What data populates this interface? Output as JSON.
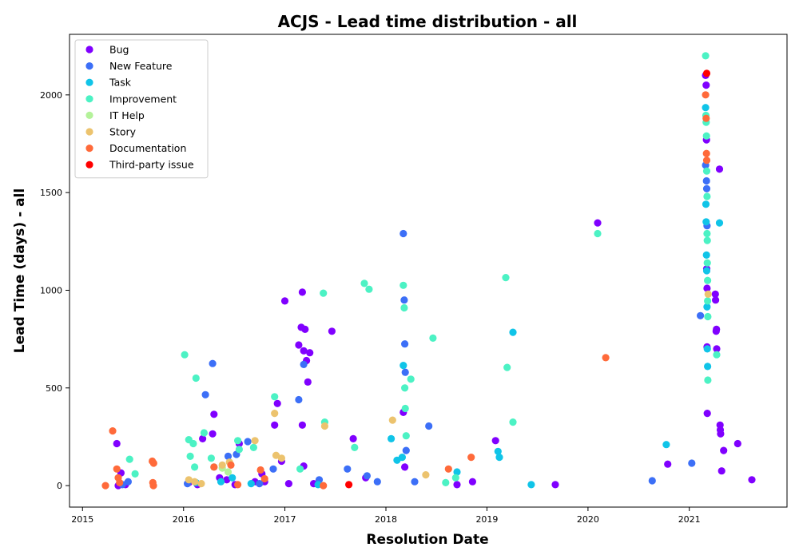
{
  "chart_data": {
    "type": "scatter",
    "title": "ACJS - Lead time distribution - all",
    "xlabel": "Resolution Date",
    "ylabel": "Lead Time (days) - all",
    "x_type": "date",
    "xlim": [
      "2014-11-15",
      "2021-12-20"
    ],
    "ylim": [
      -110,
      2310
    ],
    "x_ticks": [
      "2015",
      "2016",
      "2017",
      "2018",
      "2019",
      "2020",
      "2021"
    ],
    "y_ticks": [
      0,
      500,
      1000,
      1500,
      2000
    ],
    "grid": false,
    "legend_position": "top-left",
    "series": [
      {
        "name": "Bug",
        "color": "#8000ff",
        "points": [
          [
            "2015-05-05",
            215
          ],
          [
            "2015-05-20",
            65
          ],
          [
            "2015-06-05",
            5
          ],
          [
            "2015-05-10",
            0
          ],
          [
            "2016-01-20",
            15
          ],
          [
            "2016-02-20",
            5
          ],
          [
            "2016-03-10",
            240
          ],
          [
            "2016-04-15",
            265
          ],
          [
            "2016-04-20",
            365
          ],
          [
            "2016-05-10",
            40
          ],
          [
            "2016-06-05",
            30
          ],
          [
            "2016-07-05",
            5
          ],
          [
            "2016-07-20",
            215
          ],
          [
            "2016-09-15",
            20
          ],
          [
            "2016-10-10",
            60
          ],
          [
            "2016-10-20",
            20
          ],
          [
            "2016-11-25",
            310
          ],
          [
            "2016-12-05",
            420
          ],
          [
            "2016-12-20",
            125
          ],
          [
            "2017-01-01",
            945
          ],
          [
            "2017-01-15",
            10
          ],
          [
            "2017-02-20",
            720
          ],
          [
            "2017-03-01",
            810
          ],
          [
            "2017-03-05",
            990
          ],
          [
            "2017-03-10",
            690
          ],
          [
            "2017-03-15",
            800
          ],
          [
            "2017-03-20",
            640
          ],
          [
            "2017-03-25",
            530
          ],
          [
            "2017-03-05",
            310
          ],
          [
            "2017-04-01",
            680
          ],
          [
            "2017-03-10",
            100
          ],
          [
            "2017-04-15",
            10
          ],
          [
            "2017-06-20",
            790
          ],
          [
            "2017-09-05",
            240
          ],
          [
            "2017-10-20",
            40
          ],
          [
            "2018-03-05",
            375
          ],
          [
            "2018-03-10",
            95
          ],
          [
            "2018-09-15",
            5
          ],
          [
            "2018-11-10",
            20
          ],
          [
            "2019-02-01",
            230
          ],
          [
            "2019-09-05",
            5
          ],
          [
            "2020-02-05",
            1345
          ],
          [
            "2020-10-15",
            110
          ],
          [
            "2021-03-01",
            2100
          ],
          [
            "2021-03-03",
            2050
          ],
          [
            "2021-03-04",
            1770
          ],
          [
            "2021-03-05",
            1110
          ],
          [
            "2021-03-06",
            1010
          ],
          [
            "2021-03-06",
            710
          ],
          [
            "2021-03-07",
            370
          ],
          [
            "2021-04-05",
            980
          ],
          [
            "2021-04-06",
            950
          ],
          [
            "2021-04-08",
            790
          ],
          [
            "2021-04-09",
            800
          ],
          [
            "2021-04-10",
            700
          ],
          [
            "2021-04-20",
            1620
          ],
          [
            "2021-04-22",
            310
          ],
          [
            "2021-04-23",
            285
          ],
          [
            "2021-04-24",
            265
          ],
          [
            "2021-05-05",
            180
          ],
          [
            "2021-04-28",
            75
          ],
          [
            "2021-06-25",
            215
          ],
          [
            "2021-08-15",
            30
          ]
        ]
      },
      {
        "name": "New Feature",
        "color": "#3c6ff7",
        "points": [
          [
            "2015-06-15",
            20
          ],
          [
            "2015-05-25",
            5
          ],
          [
            "2016-01-15",
            10
          ],
          [
            "2016-03-20",
            465
          ],
          [
            "2016-04-15",
            625
          ],
          [
            "2016-06-10",
            150
          ],
          [
            "2016-07-10",
            160
          ],
          [
            "2016-08-20",
            225
          ],
          [
            "2016-10-01",
            10
          ],
          [
            "2016-11-20",
            85
          ],
          [
            "2017-02-20",
            440
          ],
          [
            "2017-03-10",
            620
          ],
          [
            "2017-05-05",
            30
          ],
          [
            "2017-08-15",
            85
          ],
          [
            "2017-10-25",
            50
          ],
          [
            "2017-12-01",
            20
          ],
          [
            "2018-03-05",
            1290
          ],
          [
            "2018-03-08",
            950
          ],
          [
            "2018-03-10",
            725
          ],
          [
            "2018-03-12",
            580
          ],
          [
            "2018-03-15",
            180
          ],
          [
            "2018-06-05",
            305
          ],
          [
            "2018-04-15",
            20
          ],
          [
            "2020-08-20",
            25
          ],
          [
            "2021-01-10",
            115
          ],
          [
            "2021-02-10",
            870
          ],
          [
            "2021-03-01",
            1640
          ],
          [
            "2021-03-04",
            1560
          ],
          [
            "2021-03-05",
            1520
          ],
          [
            "2021-03-06",
            1330
          ]
        ]
      },
      {
        "name": "Task",
        "color": "#10c4e8",
        "points": [
          [
            "2016-02-15",
            15
          ],
          [
            "2016-05-15",
            20
          ],
          [
            "2016-06-25",
            40
          ],
          [
            "2016-09-01",
            10
          ],
          [
            "2017-05-01",
            5
          ],
          [
            "2018-01-20",
            240
          ],
          [
            "2018-02-10",
            130
          ],
          [
            "2018-03-01",
            145
          ],
          [
            "2018-03-05",
            615
          ],
          [
            "2018-09-15",
            70
          ],
          [
            "2019-02-10",
            175
          ],
          [
            "2019-02-15",
            145
          ],
          [
            "2019-04-05",
            785
          ],
          [
            "2019-06-10",
            5
          ],
          [
            "2020-10-10",
            210
          ],
          [
            "2021-03-01",
            1935
          ],
          [
            "2021-03-02",
            1440
          ],
          [
            "2021-03-03",
            1350
          ],
          [
            "2021-03-04",
            1180
          ],
          [
            "2021-03-05",
            1100
          ],
          [
            "2021-03-06",
            915
          ],
          [
            "2021-03-07",
            700
          ],
          [
            "2021-03-08",
            610
          ],
          [
            "2021-04-20",
            1345
          ]
        ]
      },
      {
        "name": "Improvement",
        "color": "#4cf2c4",
        "points": [
          [
            "2015-07-10",
            60
          ],
          [
            "2015-06-20",
            135
          ],
          [
            "2016-01-05",
            670
          ],
          [
            "2016-02-15",
            550
          ],
          [
            "2016-01-20",
            235
          ],
          [
            "2016-02-05",
            215
          ],
          [
            "2016-03-15",
            270
          ],
          [
            "2016-01-25",
            150
          ],
          [
            "2016-04-10",
            140
          ],
          [
            "2016-04-20",
            95
          ],
          [
            "2016-02-10",
            95
          ],
          [
            "2016-07-15",
            230
          ],
          [
            "2016-07-20",
            185
          ],
          [
            "2016-09-10",
            195
          ],
          [
            "2016-11-25",
            455
          ],
          [
            "2017-02-25",
            85
          ],
          [
            "2017-05-20",
            985
          ],
          [
            "2017-05-25",
            325
          ],
          [
            "2017-09-10",
            195
          ],
          [
            "2017-10-15",
            1035
          ],
          [
            "2017-11-01",
            1005
          ],
          [
            "2018-03-05",
            1025
          ],
          [
            "2018-03-08",
            910
          ],
          [
            "2018-03-10",
            500
          ],
          [
            "2018-03-12",
            395
          ],
          [
            "2018-03-15",
            255
          ],
          [
            "2018-04-01",
            545
          ],
          [
            "2018-06-20",
            755
          ],
          [
            "2018-08-05",
            15
          ],
          [
            "2018-09-10",
            40
          ],
          [
            "2019-03-10",
            1065
          ],
          [
            "2019-03-15",
            605
          ],
          [
            "2019-04-05",
            325
          ],
          [
            "2020-02-05",
            1290
          ],
          [
            "2021-03-01",
            2200
          ],
          [
            "2021-03-02",
            1895
          ],
          [
            "2021-03-03",
            1860
          ],
          [
            "2021-03-04",
            1790
          ],
          [
            "2021-03-05",
            1610
          ],
          [
            "2021-03-06",
            1480
          ],
          [
            "2021-03-06",
            1290
          ],
          [
            "2021-03-07",
            1255
          ],
          [
            "2021-03-07",
            1140
          ],
          [
            "2021-03-08",
            1050
          ],
          [
            "2021-03-08",
            945
          ],
          [
            "2021-03-09",
            865
          ],
          [
            "2021-03-09",
            540
          ],
          [
            "2021-04-10",
            670
          ]
        ]
      },
      {
        "name": "IT Help",
        "color": "#b4f29a",
        "points": [
          [
            "2016-05-20",
            90
          ],
          [
            "2016-06-10",
            70
          ]
        ]
      },
      {
        "name": "Story",
        "color": "#ecc36e",
        "points": [
          [
            "2016-01-20",
            30
          ],
          [
            "2016-02-10",
            20
          ],
          [
            "2016-03-05",
            10
          ],
          [
            "2016-05-20",
            105
          ],
          [
            "2016-06-15",
            120
          ],
          [
            "2016-09-15",
            230
          ],
          [
            "2016-11-25",
            370
          ],
          [
            "2016-11-30",
            155
          ],
          [
            "2016-12-20",
            140
          ],
          [
            "2017-05-25",
            305
          ],
          [
            "2018-01-25",
            335
          ],
          [
            "2018-05-25",
            55
          ],
          [
            "2021-03-10",
            980
          ]
        ]
      },
      {
        "name": "Documentation",
        "color": "#ff6a3a",
        "points": [
          [
            "2015-03-25",
            0
          ],
          [
            "2015-04-20",
            280
          ],
          [
            "2015-05-05",
            85
          ],
          [
            "2015-05-10",
            40
          ],
          [
            "2015-05-15",
            15
          ],
          [
            "2015-09-10",
            125
          ],
          [
            "2015-09-15",
            115
          ],
          [
            "2015-09-12",
            15
          ],
          [
            "2015-09-14",
            0
          ],
          [
            "2016-04-20",
            95
          ],
          [
            "2016-06-20",
            105
          ],
          [
            "2016-07-15",
            5
          ],
          [
            "2016-10-05",
            80
          ],
          [
            "2016-10-20",
            35
          ],
          [
            "2017-05-20",
            0
          ],
          [
            "2018-08-15",
            85
          ],
          [
            "2018-11-05",
            145
          ],
          [
            "2020-03-05",
            655
          ],
          [
            "2021-03-01",
            2000
          ],
          [
            "2021-03-03",
            1880
          ],
          [
            "2021-03-04",
            1700
          ],
          [
            "2021-03-05",
            1665
          ]
        ]
      },
      {
        "name": "Third-party issue",
        "color": "#ff0000",
        "points": [
          [
            "2017-08-20",
            5
          ],
          [
            "2021-03-05",
            2110
          ]
        ]
      }
    ]
  }
}
